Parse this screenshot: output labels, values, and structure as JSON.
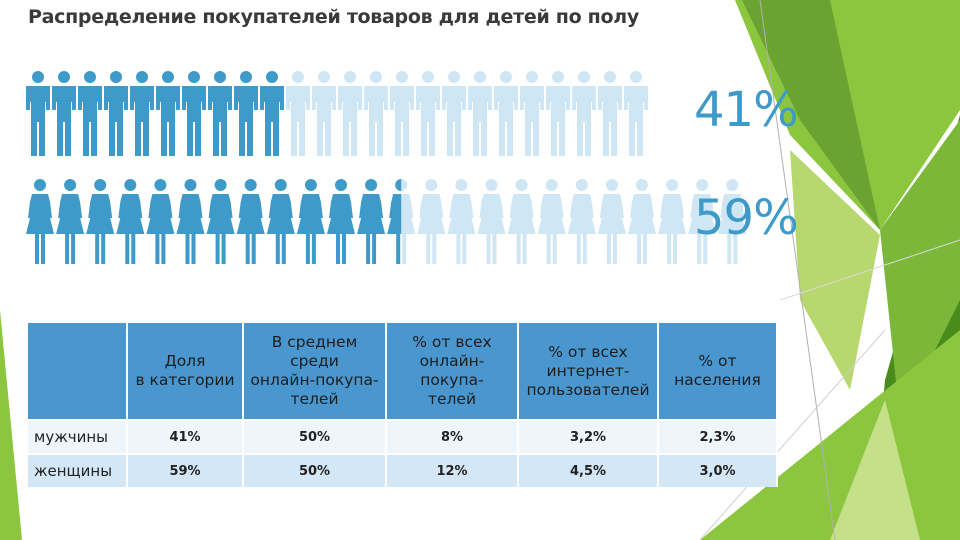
{
  "title": "Распределение покупателей товаров для детей по полу",
  "chart_data": [
    {
      "type": "pictogram",
      "title": "Распределение покупателей товаров для детей по полу",
      "total_icons": 24,
      "series": [
        {
          "name": "мужчины",
          "value": 41,
          "label": "41%",
          "filled_icons": 10
        },
        {
          "name": "женщины",
          "value": 59,
          "label": "59%",
          "filled_icons": 12.5
        }
      ]
    },
    {
      "type": "table",
      "columns": [
        "",
        "Доля в категории",
        "В среднем среди онлайн-покупа-телей",
        "% от всех онлайн-покупа-телей",
        "% от всех интернет-пользователей",
        "% от населения"
      ],
      "rows": [
        {
          "label": "мужчины",
          "values": [
            "41%",
            "50%",
            "8%",
            "3,2%",
            "2,3%"
          ]
        },
        {
          "label": "женщины",
          "values": [
            "59%",
            "50%",
            "12%",
            "4,5%",
            "3,0%"
          ]
        }
      ]
    }
  ],
  "colors": {
    "filled": "#3e9ac9",
    "empty": "#cfe6f4",
    "header": "#4a97cf",
    "green_dark": "#4a8c1c",
    "green": "#8cc63f",
    "green_light": "#c6e08a"
  },
  "table": {
    "headers": [
      "Доля\nв категории",
      "В среднем среди\nонлайн-покупа-\nтелей",
      "% от всех\nонлайн-покупа-\nтелей",
      "% от всех\nинтернет-\nпользователей",
      "% от\nнаселения"
    ],
    "rows": [
      {
        "label": "мужчины",
        "values": [
          "41%",
          "50%",
          "8%",
          "3,2%",
          "2,3%"
        ]
      },
      {
        "label": "женщины",
        "values": [
          "59%",
          "50%",
          "12%",
          "4,5%",
          "3,0%"
        ]
      }
    ]
  }
}
